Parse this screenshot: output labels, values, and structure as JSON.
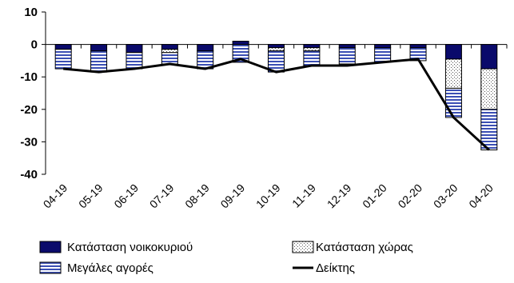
{
  "chart_data": {
    "type": "bar",
    "stacked": true,
    "categories": [
      "04-19",
      "05-19",
      "06-19",
      "07-19",
      "08-19",
      "09-19",
      "10-19",
      "11-19",
      "12-19",
      "01-20",
      "02-20",
      "03-20",
      "04-20"
    ],
    "series": [
      {
        "name": "Κατάσταση νοικοκυριού",
        "kind": "bar",
        "pattern": "solid-navy",
        "color": "#0a0a6b",
        "values": [
          -1.5,
          -2.0,
          -2.5,
          -1.5,
          -2.0,
          1.0,
          -1.0,
          -1.0,
          -1.0,
          -1.0,
          -1.0,
          -4.5,
          -7.5
        ]
      },
      {
        "name": "Κατάσταση χώρας",
        "kind": "bar",
        "pattern": "dotted",
        "color": "#ffffff",
        "values": [
          0,
          0,
          0,
          -1.0,
          0,
          0,
          -1.0,
          -1.0,
          0,
          0,
          0,
          -9.0,
          -12.5
        ]
      },
      {
        "name": "Μεγάλες αγορές",
        "kind": "bar",
        "pattern": "horizontal-stripes",
        "color": "#4a5fc0",
        "values": [
          -6.0,
          -6.5,
          -5.0,
          -3.5,
          -5.5,
          -5.5,
          -6.5,
          -4.5,
          -5.0,
          -4.5,
          -4.0,
          -9.0,
          -12.5
        ]
      },
      {
        "name": "Δείκτης",
        "kind": "line",
        "color": "#000000",
        "values": [
          -7.5,
          -8.5,
          -7.5,
          -6.0,
          -7.5,
          -4.5,
          -8.5,
          -6.5,
          -6.5,
          -5.5,
          -4.5,
          -22.5,
          -32.5
        ]
      }
    ],
    "ylim": [
      -40,
      10
    ],
    "yticks": [
      "10",
      "0",
      "-10",
      "-20",
      "-30",
      "-40"
    ],
    "ytick_values": [
      10,
      0,
      -10,
      -20,
      -30,
      -40
    ],
    "xlabel": "",
    "ylabel": "",
    "grid": false,
    "legend_position": "bottom"
  }
}
